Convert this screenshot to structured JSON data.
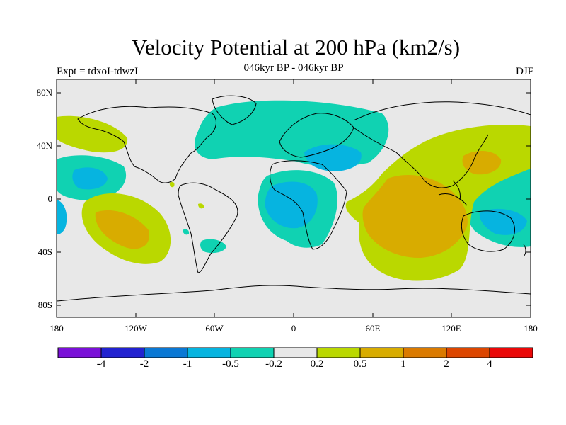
{
  "title": "Velocity Potential at 200 hPa (km2/s)",
  "subtitle_left": "Expt = tdxoI-tdwzI",
  "subtitle_center": "046kyr BP - 046kyr BP",
  "subtitle_right": "DJF",
  "y_ticks": [
    "80N",
    "40N",
    "0",
    "40S",
    "80S"
  ],
  "x_ticks": [
    "180",
    "120W",
    "60W",
    "0",
    "60E",
    "120E",
    "180"
  ],
  "colorbar": {
    "colors": [
      "#7a10d8",
      "#2222d0",
      "#0a78d4",
      "#06b4e0",
      "#10d2b2",
      "#e8e8e8",
      "#bad800",
      "#d8ac00",
      "#da7a00",
      "#dc4600",
      "#ea0808"
    ],
    "labels": [
      "-4",
      "-2",
      "-1",
      "-0.5",
      "-0.2",
      "0.2",
      "0.5",
      "1",
      "2",
      "4"
    ]
  },
  "colors": {
    "background": "#e8e8e8",
    "negative_light": "#10d2b2",
    "negative_mid": "#06b4e0",
    "positive_light": "#bad800",
    "positive_mid": "#d8ac00"
  }
}
